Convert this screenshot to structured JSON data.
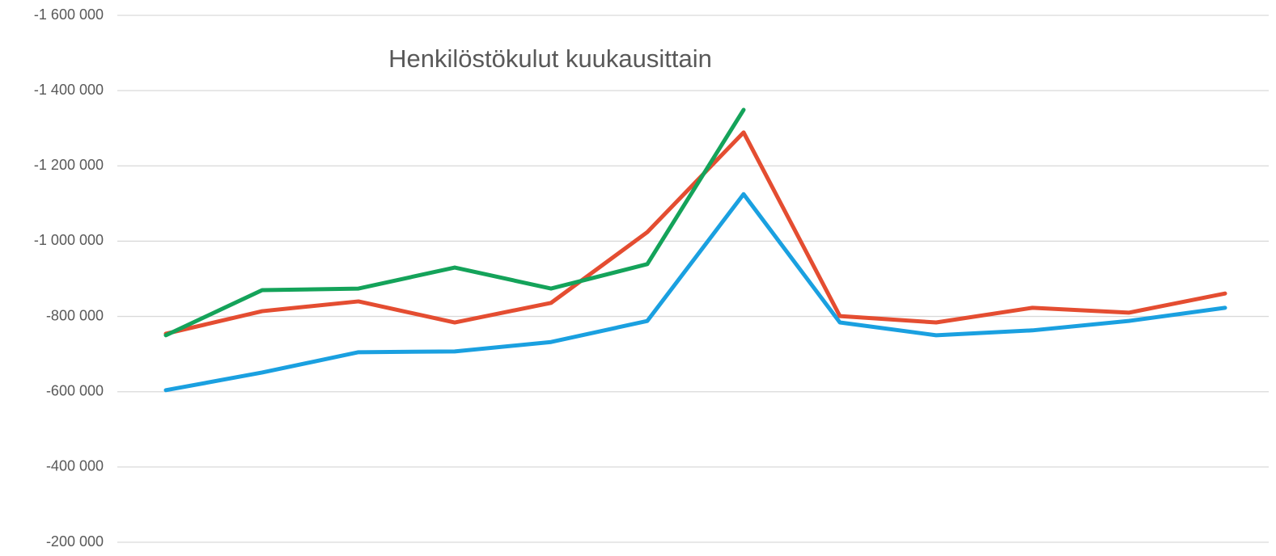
{
  "chart_data": {
    "type": "line",
    "title": "Henkilöstökulut kuukausittain",
    "categories": [
      null,
      null,
      null,
      null,
      null,
      null,
      null,
      null,
      null,
      null,
      null,
      null
    ],
    "series": [
      {
        "color": "#1aa0e0",
        "values": [
          -604000,
          -651000,
          -705000,
          -707000,
          -732000,
          -788000,
          -1125000,
          -784000,
          -750000,
          -763000,
          -788000,
          -823000
        ]
      },
      {
        "color": "#e44d31",
        "values": [
          -754000,
          -814000,
          -840000,
          -784000,
          -836000,
          -1024000,
          -1289000,
          -801000,
          -784000,
          -823000,
          -810000,
          -861000
        ]
      },
      {
        "color": "#14a35a",
        "values": [
          -750000,
          -870000,
          -874000,
          -930000,
          -874000,
          -939000,
          -1349000,
          null,
          null,
          null,
          null,
          null
        ]
      }
    ],
    "ylim": [
      -200000,
      -1600000
    ],
    "yticks": [
      {
        "value": -1600000,
        "label": "-1 600 000"
      },
      {
        "value": -1400000,
        "label": "-1 400 000"
      },
      {
        "value": -1200000,
        "label": "-1 200 000"
      },
      {
        "value": -1000000,
        "label": "-1 000 000"
      },
      {
        "value": -800000,
        "label": "-800 000"
      },
      {
        "value": -600000,
        "label": "-600 000"
      },
      {
        "value": -400000,
        "label": "-400 000"
      },
      {
        "value": -200000,
        "label": "-200 000"
      }
    ],
    "grid": true
  }
}
